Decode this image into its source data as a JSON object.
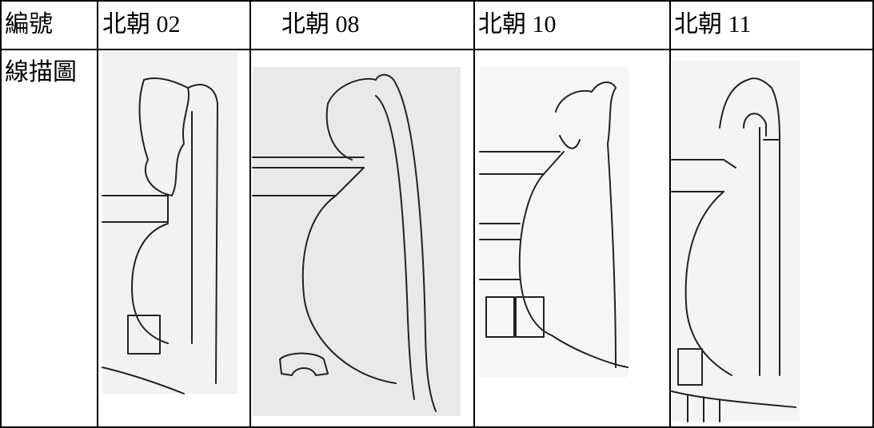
{
  "table": {
    "header": [
      "編號",
      "北朝 02",
      "北朝 08",
      "北朝 10",
      "北朝 11"
    ],
    "rows": [
      [
        "線描圖"
      ]
    ]
  }
}
